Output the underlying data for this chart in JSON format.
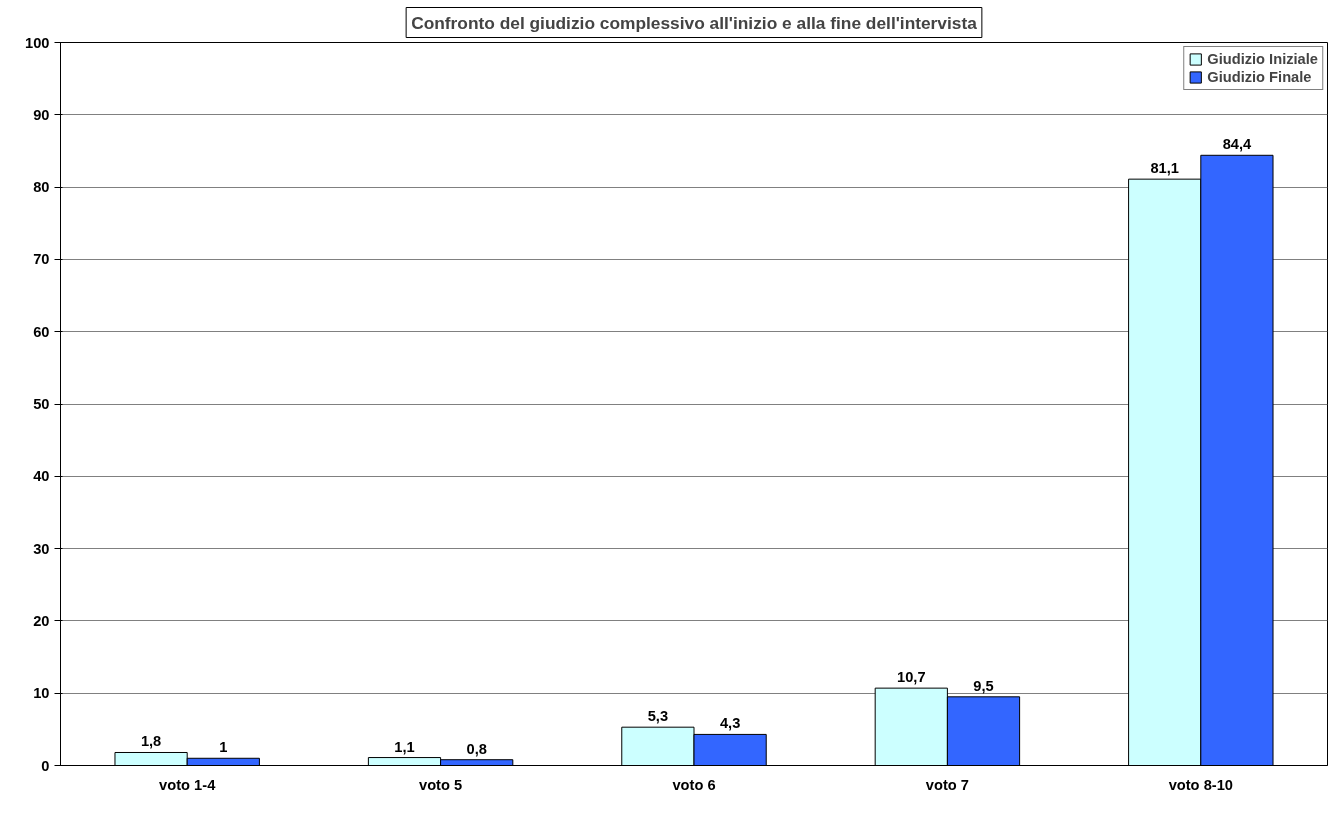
{
  "chart_data": {
    "type": "bar",
    "title": "Confronto del giudizio complessivo all'inizio e alla fine dell'intervista",
    "categories": [
      "voto 1-4",
      "voto 5",
      "voto 6",
      "voto 7",
      "voto 8-10"
    ],
    "series": [
      {
        "name": "Giudizio Iniziale",
        "color": "#ccffff",
        "values": [
          1.8,
          1.1,
          5.3,
          10.7,
          81.1
        ],
        "value_labels": [
          "1,8",
          "1,1",
          "5,3",
          "10,7",
          "81,1"
        ]
      },
      {
        "name": "Giudizio Finale",
        "color": "#3366ff",
        "values": [
          1,
          0.8,
          4.3,
          9.5,
          84.4
        ],
        "value_labels": [
          "1",
          "0,8",
          "4,3",
          "9,5",
          "84,4"
        ]
      }
    ],
    "ylim": [
      0,
      100
    ],
    "yticks": [
      0,
      10,
      20,
      30,
      40,
      50,
      60,
      70,
      80,
      90,
      100
    ],
    "grid": "y",
    "legend": "top right"
  }
}
